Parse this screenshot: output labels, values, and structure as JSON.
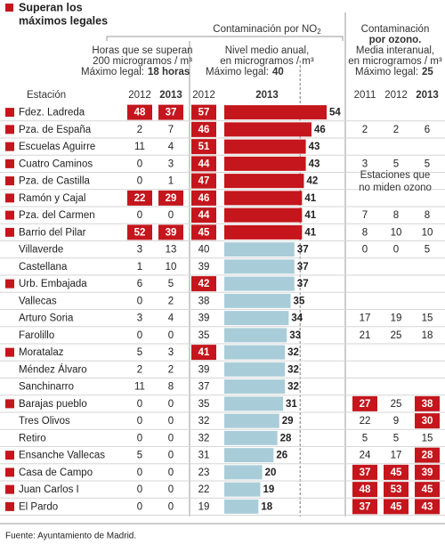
{
  "title": [
    "Superan los",
    "máximos legales"
  ],
  "no2_title": {
    "main": "Contaminación por NO",
    "sub": "2"
  },
  "hours_header": {
    "lines": [
      "Horas que se superan",
      "200 microgramos / m³",
      "Máximo legal:"
    ],
    "limit": "18 horas"
  },
  "no2_header": {
    "lines": [
      "Nivel medio anual,",
      "en microgramos / m³",
      "Máximo legal:"
    ],
    "limit": "40"
  },
  "ozone_header": {
    "lines": [
      "Contaminación",
      "por ozono.",
      "Media interanual,",
      "en microgramos / m³",
      "Máximo legal:"
    ],
    "limit": "25",
    "bold_line": 1
  },
  "station_header": "Estación",
  "hours_years": [
    "2012",
    "2013"
  ],
  "no2_years": [
    "2012",
    "2013"
  ],
  "ozone_years": [
    "2011",
    "2012",
    "2013"
  ],
  "no_ozone_note": [
    "Estaciones que",
    "no miden ozono"
  ],
  "colors": {
    "red": "#c4161c",
    "blue": "#a9cdd8"
  },
  "rows": [
    {
      "station": "Fdez. Ladreda",
      "marked": true,
      "hours": [
        48,
        37
      ],
      "no2": [
        57,
        54
      ],
      "ozone": [
        null,
        null,
        null
      ]
    },
    {
      "station": "Pza. de España",
      "marked": true,
      "hours": [
        2,
        7
      ],
      "no2": [
        46,
        46
      ],
      "ozone": [
        2,
        2,
        6
      ]
    },
    {
      "station": "Escuelas Aguirre",
      "marked": true,
      "hours": [
        11,
        4
      ],
      "no2": [
        51,
        43
      ],
      "ozone": [
        null,
        null,
        null
      ]
    },
    {
      "station": "Cuatro Caminos",
      "marked": true,
      "hours": [
        0,
        3
      ],
      "no2": [
        44,
        43
      ],
      "ozone": [
        3,
        5,
        5
      ]
    },
    {
      "station": "Pza. de Castilla",
      "marked": true,
      "hours": [
        0,
        1
      ],
      "no2": [
        47,
        42
      ],
      "ozone": [
        null,
        null,
        null
      ]
    },
    {
      "station": "Ramón y Cajal",
      "marked": true,
      "hours": [
        22,
        29
      ],
      "no2": [
        46,
        41
      ],
      "ozone": [
        null,
        null,
        null
      ]
    },
    {
      "station": "Pza. del Carmen",
      "marked": true,
      "hours": [
        0,
        0
      ],
      "no2": [
        44,
        41
      ],
      "ozone": [
        7,
        8,
        8
      ]
    },
    {
      "station": "Barrio del Pilar",
      "marked": true,
      "hours": [
        52,
        39
      ],
      "no2": [
        45,
        41
      ],
      "ozone": [
        8,
        10,
        10
      ]
    },
    {
      "station": "Villaverde",
      "marked": false,
      "hours": [
        3,
        13
      ],
      "no2": [
        40,
        37
      ],
      "ozone": [
        0,
        0,
        5
      ]
    },
    {
      "station": "Castellana",
      "marked": false,
      "hours": [
        1,
        10
      ],
      "no2": [
        39,
        37
      ],
      "ozone": [
        null,
        null,
        null
      ]
    },
    {
      "station": "Urb. Embajada",
      "marked": true,
      "hours": [
        6,
        5
      ],
      "no2": [
        42,
        37
      ],
      "ozone": [
        null,
        null,
        null
      ]
    },
    {
      "station": "Vallecas",
      "marked": false,
      "hours": [
        0,
        2
      ],
      "no2": [
        38,
        35
      ],
      "ozone": [
        null,
        null,
        null
      ]
    },
    {
      "station": "Arturo Soria",
      "marked": false,
      "hours": [
        3,
        4
      ],
      "no2": [
        39,
        34
      ],
      "ozone": [
        17,
        19,
        15
      ]
    },
    {
      "station": "Farolillo",
      "marked": false,
      "hours": [
        0,
        0
      ],
      "no2": [
        35,
        33
      ],
      "ozone": [
        21,
        25,
        18
      ]
    },
    {
      "station": "Moratalaz",
      "marked": true,
      "hours": [
        5,
        3
      ],
      "no2": [
        41,
        32
      ],
      "ozone": [
        null,
        null,
        null
      ]
    },
    {
      "station": "Méndez Álvaro",
      "marked": false,
      "hours": [
        2,
        2
      ],
      "no2": [
        39,
        32
      ],
      "ozone": [
        null,
        null,
        null
      ]
    },
    {
      "station": "Sanchinarro",
      "marked": false,
      "hours": [
        11,
        8
      ],
      "no2": [
        37,
        32
      ],
      "ozone": [
        null,
        null,
        null
      ]
    },
    {
      "station": "Barajas pueblo",
      "marked": true,
      "hours": [
        0,
        0
      ],
      "no2": [
        35,
        31
      ],
      "ozone": [
        27,
        25,
        38
      ]
    },
    {
      "station": "Tres Olivos",
      "marked": false,
      "hours": [
        0,
        0
      ],
      "no2": [
        32,
        29
      ],
      "ozone": [
        22,
        9,
        30
      ]
    },
    {
      "station": "Retiro",
      "marked": false,
      "hours": [
        0,
        0
      ],
      "no2": [
        32,
        28
      ],
      "ozone": [
        5,
        5,
        15
      ]
    },
    {
      "station": "Ensanche Vallecas",
      "marked": true,
      "hours": [
        5,
        0
      ],
      "no2": [
        31,
        26
      ],
      "ozone": [
        24,
        17,
        28
      ]
    },
    {
      "station": "Casa de Campo",
      "marked": true,
      "hours": [
        0,
        0
      ],
      "no2": [
        23,
        20
      ],
      "ozone": [
        37,
        45,
        39
      ]
    },
    {
      "station": "Juan Carlos I",
      "marked": true,
      "hours": [
        0,
        0
      ],
      "no2": [
        22,
        19
      ],
      "ozone": [
        48,
        53,
        45
      ]
    },
    {
      "station": "El Pardo",
      "marked": true,
      "hours": [
        0,
        0
      ],
      "no2": [
        19,
        18
      ],
      "ozone": [
        37,
        45,
        43
      ]
    }
  ],
  "source": "Fuente: Ayuntamiento de Madrid."
}
